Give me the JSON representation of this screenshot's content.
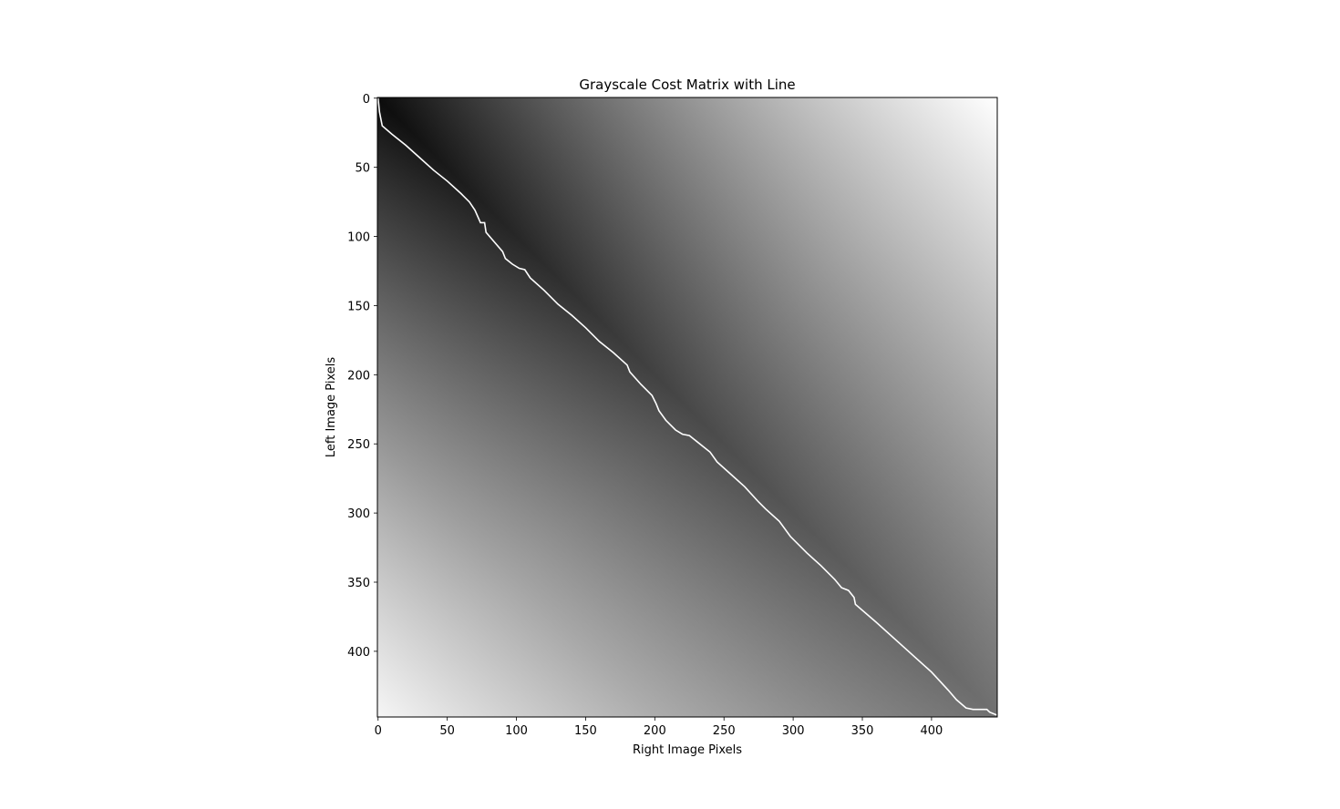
{
  "chart_data": {
    "type": "heatmap",
    "title": "Grayscale Cost Matrix with Line",
    "xlabel": "Right Image Pixels",
    "ylabel": "Left Image Pixels",
    "xlim": [
      -0.5,
      447.5
    ],
    "ylim": [
      447.5,
      -0.5
    ],
    "x_ticks": [
      0,
      50,
      100,
      150,
      200,
      250,
      300,
      350,
      400
    ],
    "y_ticks": [
      0,
      50,
      100,
      150,
      200,
      250,
      300,
      350,
      400
    ],
    "colormap": "gray",
    "grid": false,
    "matrix_size": [
      448,
      448
    ],
    "path_color": "#ffffff",
    "path": [
      [
        0,
        0
      ],
      [
        1,
        10
      ],
      [
        2,
        15
      ],
      [
        3,
        20
      ],
      [
        10,
        26
      ],
      [
        20,
        34
      ],
      [
        30,
        43
      ],
      [
        40,
        52
      ],
      [
        50,
        60
      ],
      [
        60,
        69
      ],
      [
        66,
        75
      ],
      [
        70,
        81
      ],
      [
        74,
        90
      ],
      [
        77,
        90
      ],
      [
        78,
        97
      ],
      [
        84,
        104
      ],
      [
        90,
        111
      ],
      [
        92,
        116
      ],
      [
        97,
        120
      ],
      [
        102,
        123
      ],
      [
        106,
        124
      ],
      [
        110,
        130
      ],
      [
        120,
        139
      ],
      [
        130,
        149
      ],
      [
        140,
        157
      ],
      [
        150,
        166
      ],
      [
        160,
        176
      ],
      [
        170,
        184
      ],
      [
        180,
        193
      ],
      [
        182,
        198
      ],
      [
        190,
        207
      ],
      [
        198,
        215
      ],
      [
        201,
        221
      ],
      [
        203,
        226
      ],
      [
        208,
        233
      ],
      [
        215,
        240
      ],
      [
        220,
        243
      ],
      [
        225,
        244
      ],
      [
        240,
        256
      ],
      [
        245,
        263
      ],
      [
        255,
        272
      ],
      [
        265,
        281
      ],
      [
        275,
        292
      ],
      [
        280,
        297
      ],
      [
        290,
        306
      ],
      [
        298,
        317
      ],
      [
        310,
        329
      ],
      [
        320,
        338
      ],
      [
        330,
        348
      ],
      [
        335,
        354
      ],
      [
        340,
        356
      ],
      [
        344,
        361
      ],
      [
        345,
        366
      ],
      [
        360,
        379
      ],
      [
        380,
        397
      ],
      [
        400,
        415
      ],
      [
        412,
        428
      ],
      [
        418,
        435
      ],
      [
        425,
        441
      ],
      [
        430,
        442
      ],
      [
        440,
        442
      ],
      [
        442,
        444
      ],
      [
        447,
        446
      ]
    ]
  }
}
